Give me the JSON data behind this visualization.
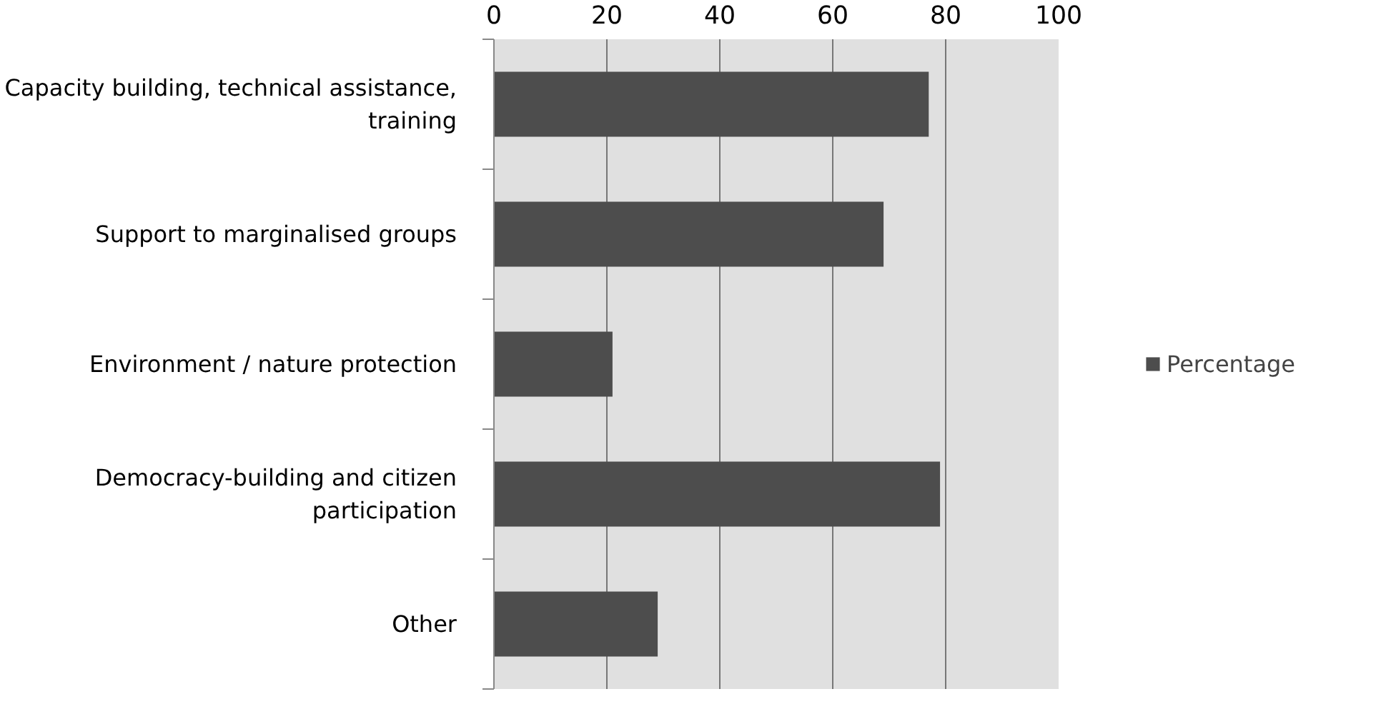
{
  "chart_data": {
    "type": "bar",
    "orientation": "horizontal",
    "categories": [
      "Capacity building, technical assistance, training",
      "Support to marginalised groups",
      "Environment / nature protection",
      "Democracy-building and citizen participation",
      "Other"
    ],
    "series": [
      {
        "name": "Percentage",
        "color": "#4d4d4d",
        "values": [
          77,
          69,
          21,
          79,
          29
        ]
      }
    ],
    "xlim": [
      0,
      100
    ],
    "xticks": [
      0,
      20,
      40,
      60,
      80,
      100
    ],
    "grid": "x",
    "legend": "right"
  }
}
